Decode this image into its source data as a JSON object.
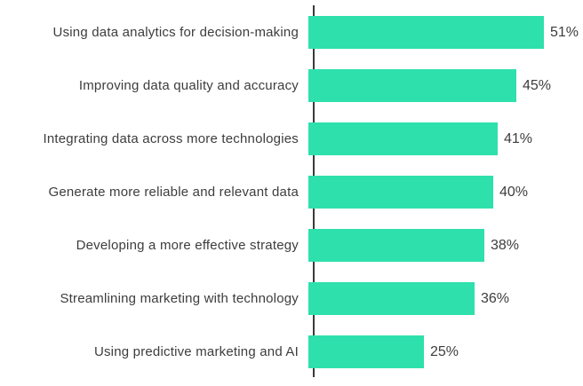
{
  "chart_data": {
    "type": "bar",
    "orientation": "horizontal",
    "title": "",
    "xlabel": "",
    "ylabel": "",
    "categories": [
      "Using data analytics for decision-making",
      "Improving data quality and accuracy",
      "Integrating data across more technologies",
      "Generate more reliable and relevant data",
      "Developing a more effective strategy",
      "Streamlining marketing with technology",
      "Using predictive marketing and AI"
    ],
    "values": [
      51,
      45,
      41,
      40,
      38,
      36,
      25
    ],
    "value_labels": [
      "51%",
      "45%",
      "41%",
      "40%",
      "38%",
      "36%",
      "25%"
    ],
    "xlim": [
      0,
      58
    ],
    "grid": false,
    "legend": false,
    "bar_color": "#2ee0ac",
    "axis_color": "#3a3a3a",
    "text_color": "#3d3d3d"
  }
}
